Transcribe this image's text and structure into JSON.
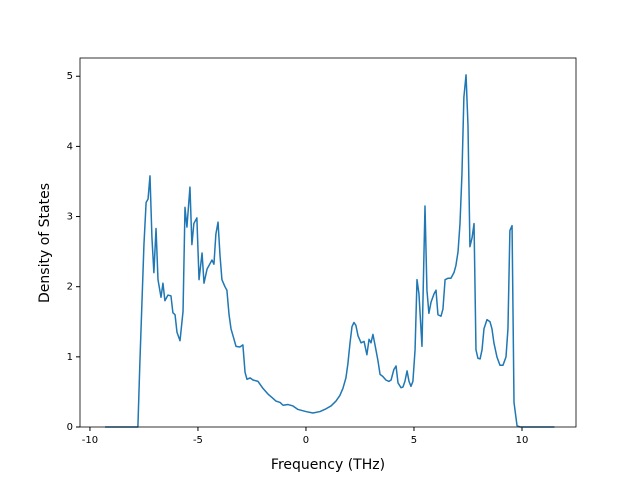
{
  "chart_data": {
    "type": "line",
    "xlabel": "Frequency (THz)",
    "ylabel": "Density of States",
    "xlim": [
      -10.46,
      12.5
    ],
    "ylim": [
      0,
      5.26
    ],
    "xticks": [
      -10,
      -5,
      0,
      5,
      10
    ],
    "yticks": [
      0,
      1,
      2,
      3,
      4,
      5
    ],
    "grid": false,
    "series": [
      {
        "color": "#1f77b4",
        "x": [
          -9.3,
          -7.78,
          -7.69,
          -7.5,
          -7.4,
          -7.31,
          -7.22,
          -7.13,
          -7.04,
          -6.94,
          -6.85,
          -6.71,
          -6.62,
          -6.53,
          -6.39,
          -6.25,
          -6.16,
          -6.06,
          -5.97,
          -5.83,
          -5.69,
          -5.6,
          -5.51,
          -5.37,
          -5.28,
          -5.19,
          -5.05,
          -4.95,
          -4.81,
          -4.72,
          -4.58,
          -4.44,
          -4.35,
          -4.26,
          -4.17,
          -4.07,
          -3.98,
          -3.89,
          -3.75,
          -3.66,
          -3.56,
          -3.47,
          -3.33,
          -3.24,
          -3.06,
          -2.92,
          -2.82,
          -2.73,
          -2.59,
          -2.45,
          -2.22,
          -1.99,
          -1.76,
          -1.57,
          -1.39,
          -1.2,
          -1.06,
          -0.83,
          -0.6,
          -0.37,
          0,
          0.32,
          0.65,
          0.93,
          1.16,
          1.39,
          1.57,
          1.71,
          1.85,
          1.94,
          2.04,
          2.13,
          2.22,
          2.31,
          2.41,
          2.55,
          2.69,
          2.82,
          2.92,
          3.01,
          3.1,
          3.19,
          3.33,
          3.43,
          3.56,
          3.7,
          3.84,
          3.94,
          4.07,
          4.17,
          4.26,
          4.4,
          4.49,
          4.58,
          4.68,
          4.77,
          4.86,
          4.95,
          5.05,
          5.14,
          5.23,
          5.37,
          5.51,
          5.6,
          5.69,
          5.79,
          5.93,
          6.02,
          6.11,
          6.25,
          6.34,
          6.44,
          6.57,
          6.71,
          6.85,
          6.94,
          7.04,
          7.13,
          7.22,
          7.31,
          7.41,
          7.5,
          7.59,
          7.69,
          7.78,
          7.87,
          7.96,
          8.06,
          8.15,
          8.24,
          8.38,
          8.52,
          8.61,
          8.7,
          8.84,
          8.98,
          9.12,
          9.26,
          9.35,
          9.44,
          9.54,
          9.63,
          9.77,
          9.91,
          11.5
        ],
        "values": [
          0,
          0,
          0.9,
          2.6,
          3.2,
          3.25,
          3.58,
          2.7,
          2.2,
          2.83,
          2.1,
          1.85,
          2.05,
          1.8,
          1.88,
          1.87,
          1.63,
          1.6,
          1.35,
          1.23,
          1.65,
          3.13,
          2.85,
          3.42,
          2.6,
          2.9,
          2.98,
          2.1,
          2.48,
          2.05,
          2.25,
          2.33,
          2.38,
          2.32,
          2.75,
          2.92,
          2.45,
          2.1,
          2.0,
          1.95,
          1.6,
          1.4,
          1.25,
          1.15,
          1.14,
          1.17,
          0.78,
          0.68,
          0.7,
          0.67,
          0.65,
          0.55,
          0.47,
          0.42,
          0.37,
          0.35,
          0.31,
          0.32,
          0.3,
          0.25,
          0.22,
          0.2,
          0.22,
          0.26,
          0.3,
          0.37,
          0.45,
          0.55,
          0.7,
          0.9,
          1.2,
          1.43,
          1.49,
          1.45,
          1.3,
          1.2,
          1.22,
          1.03,
          1.25,
          1.2,
          1.32,
          1.18,
          0.95,
          0.75,
          0.72,
          0.67,
          0.65,
          0.67,
          0.82,
          0.87,
          0.63,
          0.56,
          0.57,
          0.65,
          0.8,
          0.65,
          0.58,
          0.65,
          1.1,
          2.1,
          1.9,
          1.15,
          3.15,
          1.95,
          1.62,
          1.78,
          1.9,
          1.95,
          1.6,
          1.58,
          1.68,
          2.1,
          2.12,
          2.12,
          2.2,
          2.3,
          2.5,
          2.9,
          3.6,
          4.7,
          5.02,
          4.3,
          2.57,
          2.7,
          2.9,
          1.1,
          0.98,
          0.97,
          1.1,
          1.4,
          1.53,
          1.5,
          1.4,
          1.2,
          1.0,
          0.88,
          0.88,
          1.0,
          1.4,
          2.8,
          2.87,
          0.35,
          0.02,
          0,
          0
        ]
      }
    ]
  }
}
